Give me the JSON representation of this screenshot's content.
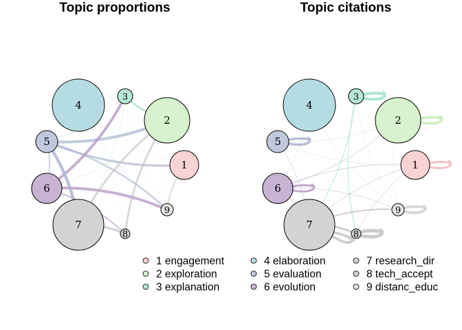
{
  "panels": [
    {
      "title": "Topic proportions"
    },
    {
      "title": "Topic citations"
    }
  ],
  "topics": [
    {
      "id": "1",
      "name": "engagement",
      "color": "#f8d3d3"
    },
    {
      "id": "2",
      "name": "exploration",
      "color": "#d8f2cf"
    },
    {
      "id": "3",
      "name": "explanation",
      "color": "#b6e6d8"
    },
    {
      "id": "4",
      "name": "elaboration",
      "color": "#b5dce2"
    },
    {
      "id": "5",
      "name": "evaluation",
      "color": "#c1c8dc"
    },
    {
      "id": "6",
      "name": "evolution",
      "color": "#c9b3d3"
    },
    {
      "id": "7",
      "name": "research_dir",
      "color": "#d3d3d3"
    },
    {
      "id": "8",
      "name": "tech_accept",
      "color": "#d3d3d3"
    },
    {
      "id": "9",
      "name": "distanc_educ",
      "color": "#e3e3e3"
    }
  ],
  "legend": [
    {
      "label": "1 engagement"
    },
    {
      "label": "2 exploration"
    },
    {
      "label": "3 explanation"
    },
    {
      "label": "4 elaboration"
    },
    {
      "label": "5 evaluation"
    },
    {
      "label": "6 evolution"
    },
    {
      "label": "7 research_dir"
    },
    {
      "label": "8 tech_accept"
    },
    {
      "label": "9 distanc_educ"
    }
  ],
  "edge_colors": {
    "1": "#f4b6b6",
    "2": "#c4ebb4",
    "3": "#9fe0ce",
    "4": "#9fd3dc",
    "5": "#a9b3cf",
    "6": "#b89bc6",
    "7": "#c2c2c2",
    "8": "#c2c2c2",
    "9": "#d0d0d0"
  }
}
